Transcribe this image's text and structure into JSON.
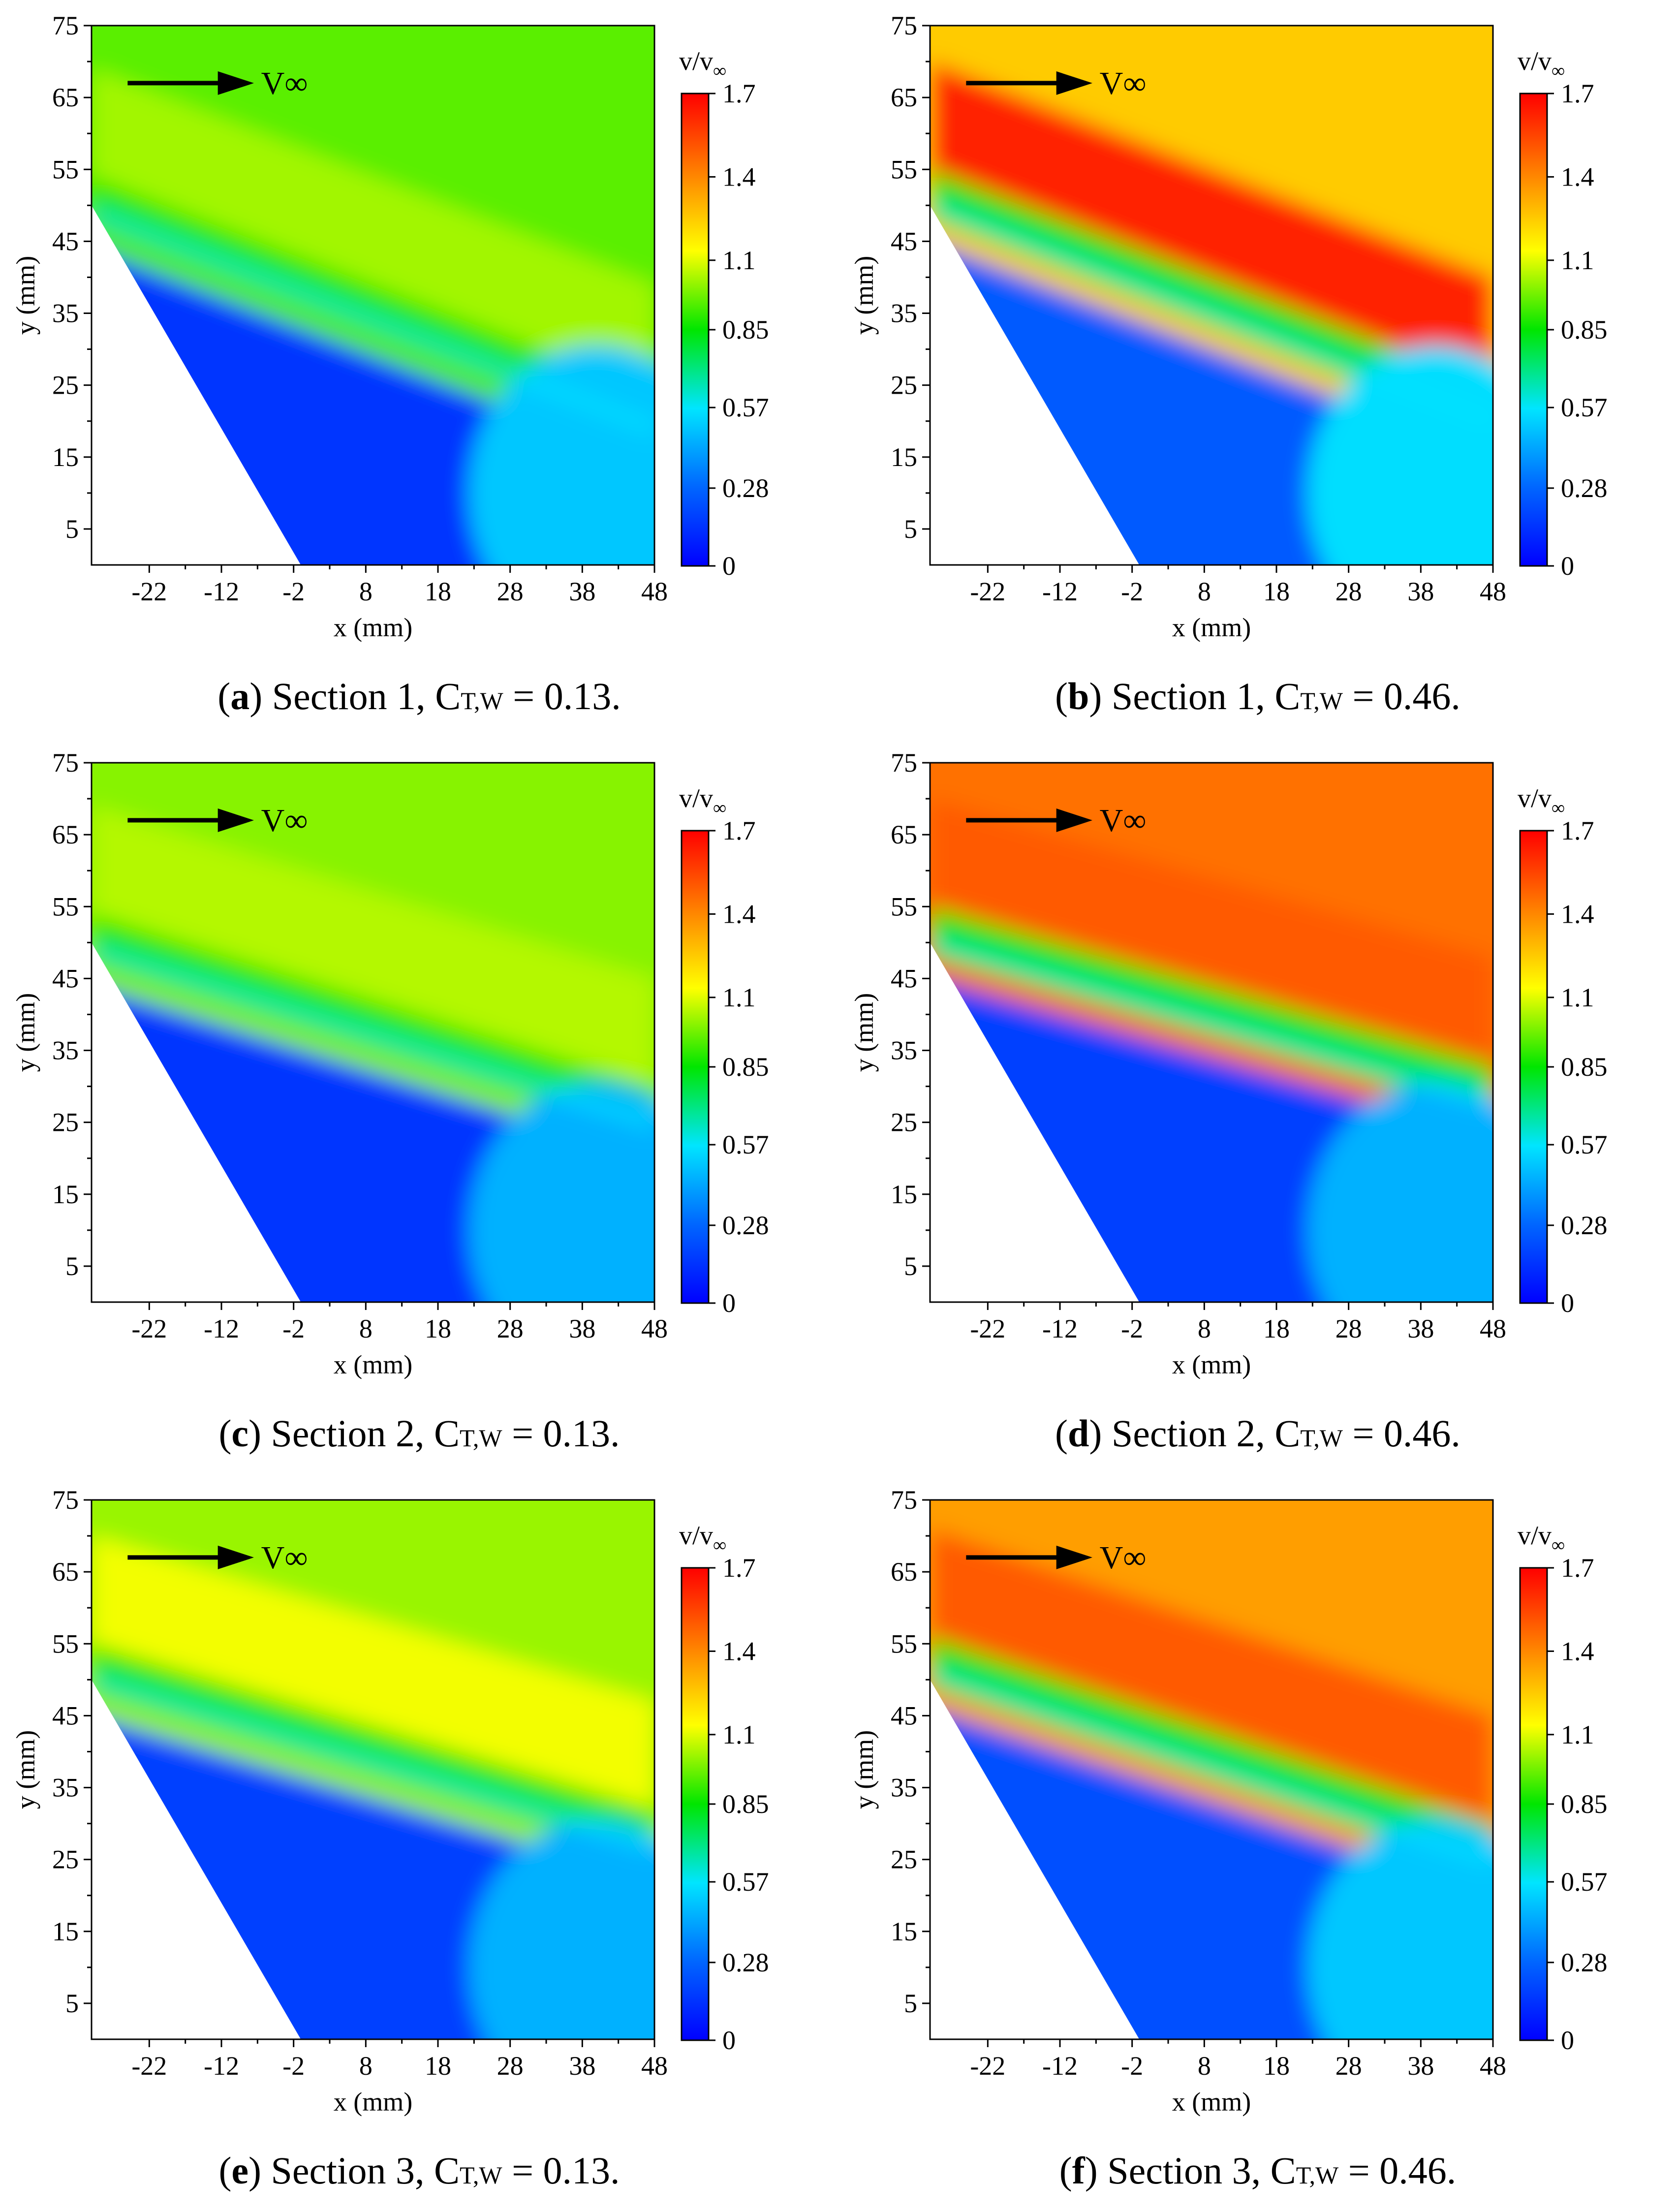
{
  "colors": {
    "scale": [
      "#0000ff",
      "#0066ff",
      "#00e5ff",
      "#00e600",
      "#ffff00",
      "#ff8000",
      "#ff0000"
    ],
    "bottom_plot": "#00e5ff"
  },
  "chart_data": [
    {
      "type": "heatmap",
      "panel_letter": "a",
      "caption_section": "Section 1,",
      "caption_c": "C",
      "caption_sub": "T,W",
      "caption_value": "= 0.13.",
      "xlabel": "x (mm)",
      "ylabel": "y (mm)",
      "xticks": [
        "-22",
        "-12",
        "-2",
        "8",
        "18",
        "28",
        "38",
        "48"
      ],
      "yticks": [
        "5",
        "15",
        "25",
        "35",
        "45",
        "55",
        "65",
        "75"
      ],
      "xlim": [
        -30,
        48
      ],
      "ylim": [
        0,
        75
      ],
      "colorbar": {
        "title": "v/v",
        "title_sub": "∞",
        "ticks": [
          "0",
          "0.28",
          "0.57",
          "0.85",
          "1.1",
          "1.4",
          "1.7"
        ],
        "range": [
          0,
          1.7
        ]
      },
      "annotation": "V∞",
      "field": {
        "top_value": 0.95,
        "upper_value": 1.03,
        "interface_y_left": 52,
        "interface_y_right": 22,
        "layer_value": 0.88,
        "lower_value": 0.15,
        "bottom_right_value": 0.5
      }
    },
    {
      "type": "heatmap",
      "panel_letter": "b",
      "caption_section": "Section 1,",
      "caption_c": "C",
      "caption_sub": "T,W",
      "caption_value": "= 0.46.",
      "xlabel": "x (mm)",
      "ylabel": "y (mm)",
      "xticks": [
        "-22",
        "-12",
        "-2",
        "8",
        "18",
        "28",
        "38",
        "48"
      ],
      "yticks": [
        "5",
        "15",
        "25",
        "35",
        "45",
        "55",
        "65",
        "75"
      ],
      "xlim": [
        -30,
        48
      ],
      "ylim": [
        0,
        75
      ],
      "colorbar": {
        "title": "v/v",
        "title_sub": "∞",
        "ticks": [
          "0",
          "0.28",
          "0.57",
          "0.85",
          "1.1",
          "1.4",
          "1.7"
        ],
        "range": [
          0,
          1.7
        ]
      },
      "annotation": "V∞",
      "field": {
        "top_value": 1.25,
        "upper_value": 1.62,
        "interface_y_left": 53,
        "interface_y_right": 23,
        "layer_value": 0.85,
        "lower_value": 0.25,
        "bottom_right_value": 0.55
      }
    },
    {
      "type": "heatmap",
      "panel_letter": "c",
      "caption_section": "Section 2,",
      "caption_c": "C",
      "caption_sub": "T,W",
      "caption_value": "= 0.13.",
      "xlabel": "x (mm)",
      "ylabel": "y (mm)",
      "xticks": [
        "-22",
        "-12",
        "-2",
        "8",
        "18",
        "28",
        "38",
        "48"
      ],
      "yticks": [
        "5",
        "15",
        "25",
        "35",
        "45",
        "55",
        "65",
        "75"
      ],
      "xlim": [
        -30,
        48
      ],
      "ylim": [
        0,
        75
      ],
      "colorbar": {
        "title": "v/v",
        "title_sub": "∞",
        "ticks": [
          "0",
          "0.28",
          "0.57",
          "0.85",
          "1.1",
          "1.4",
          "1.7"
        ],
        "range": [
          0,
          1.7
        ]
      },
      "annotation": "V∞",
      "field": {
        "top_value": 1.0,
        "upper_value": 1.05,
        "interface_y_left": 52,
        "interface_y_right": 28,
        "layer_value": 0.88,
        "lower_value": 0.15,
        "bottom_right_value": 0.45
      }
    },
    {
      "type": "heatmap",
      "panel_letter": "d",
      "caption_section": "Section 2,",
      "caption_c": "C",
      "caption_sub": "T,W",
      "caption_value": "= 0.46.",
      "xlabel": "x (mm)",
      "ylabel": "y (mm)",
      "xticks": [
        "-22",
        "-12",
        "-2",
        "8",
        "18",
        "28",
        "38",
        "48"
      ],
      "yticks": [
        "5",
        "15",
        "25",
        "35",
        "45",
        "55",
        "65",
        "75"
      ],
      "xlim": [
        -30,
        48
      ],
      "ylim": [
        0,
        75
      ],
      "colorbar": {
        "title": "v/v",
        "title_sub": "∞",
        "ticks": [
          "0",
          "0.28",
          "0.57",
          "0.85",
          "1.1",
          "1.4",
          "1.7"
        ],
        "range": [
          0,
          1.7
        ]
      },
      "annotation": "V∞",
      "field": {
        "top_value": 1.45,
        "upper_value": 1.5,
        "interface_y_left": 53,
        "interface_y_right": 31,
        "layer_value": 0.85,
        "lower_value": 0.18,
        "bottom_right_value": 0.45
      }
    },
    {
      "type": "heatmap",
      "panel_letter": "e",
      "caption_section": "Section 3,",
      "caption_c": "C",
      "caption_sub": "T,W",
      "caption_value": "= 0.13.",
      "xlabel": "x (mm)",
      "ylabel": "y (mm)",
      "xticks": [
        "-22",
        "-12",
        "-2",
        "8",
        "18",
        "28",
        "38",
        "48"
      ],
      "yticks": [
        "5",
        "15",
        "25",
        "35",
        "45",
        "55",
        "65",
        "75"
      ],
      "xlim": [
        -30,
        48
      ],
      "ylim": [
        0,
        75
      ],
      "colorbar": {
        "title": "v/v",
        "title_sub": "∞",
        "ticks": [
          "0",
          "0.28",
          "0.57",
          "0.85",
          "1.1",
          "1.4",
          "1.7"
        ],
        "range": [
          0,
          1.7
        ]
      },
      "annotation": "V∞",
      "field": {
        "top_value": 1.02,
        "upper_value": 1.12,
        "interface_y_left": 53,
        "interface_y_right": 30,
        "layer_value": 0.88,
        "lower_value": 0.18,
        "bottom_right_value": 0.45
      }
    },
    {
      "type": "heatmap",
      "panel_letter": "f",
      "caption_section": "Section 3,",
      "caption_c": "C",
      "caption_sub": "T,W",
      "caption_value": "= 0.46.",
      "xlabel": "x (mm)",
      "ylabel": "y (mm)",
      "xticks": [
        "-22",
        "-12",
        "-2",
        "8",
        "18",
        "28",
        "38",
        "48"
      ],
      "yticks": [
        "5",
        "15",
        "25",
        "35",
        "45",
        "55",
        "65",
        "75"
      ],
      "xlim": [
        -30,
        48
      ],
      "ylim": [
        0,
        75
      ],
      "colorbar": {
        "title": "v/v",
        "title_sub": "∞",
        "ticks": [
          "0",
          "0.28",
          "0.57",
          "0.85",
          "1.1",
          "1.4",
          "1.7"
        ],
        "range": [
          0,
          1.7
        ]
      },
      "annotation": "V∞",
      "field": {
        "top_value": 1.35,
        "upper_value": 1.5,
        "interface_y_left": 54,
        "interface_y_right": 28,
        "layer_value": 0.85,
        "lower_value": 0.22,
        "bottom_right_value": 0.5
      }
    }
  ]
}
